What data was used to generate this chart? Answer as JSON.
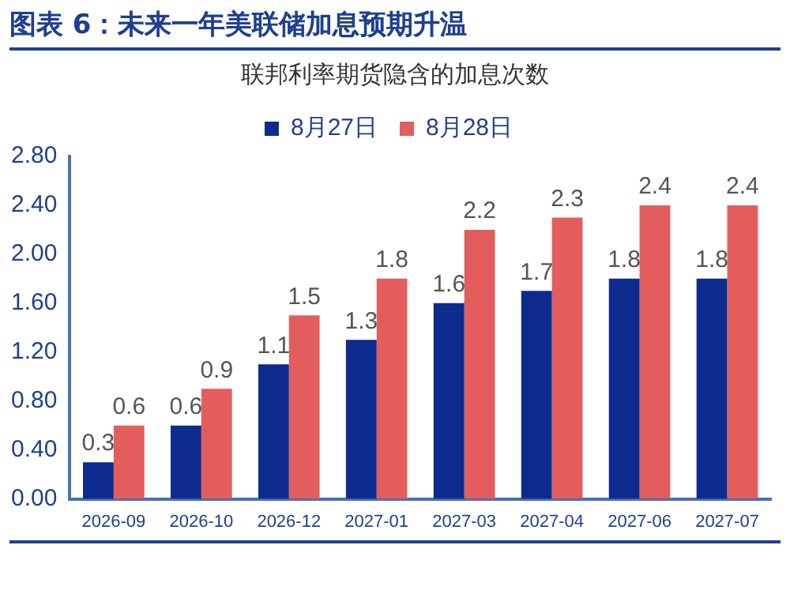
{
  "chart_data": {
    "type": "bar",
    "title": "图表 6：未来一年美联储加息预期升温",
    "subtitle": "联邦利率期货隐含的加息次数",
    "categories": [
      "2026-09",
      "2026-10",
      "2026-12",
      "2027-01",
      "2027-03",
      "2027-04",
      "2027-06",
      "2027-07"
    ],
    "series": [
      {
        "name": "8月27日",
        "color": "#0d2b8e",
        "values": [
          0.3,
          0.6,
          1.1,
          1.3,
          1.6,
          1.7,
          1.8,
          1.8
        ]
      },
      {
        "name": "8月28日",
        "color": "#e35d5d",
        "values": [
          0.6,
          0.9,
          1.5,
          1.8,
          2.2,
          2.3,
          2.4,
          2.4
        ]
      }
    ],
    "ylim": [
      0,
      2.8
    ],
    "yticks": [
      {
        "value": 0,
        "label": "0.00"
      },
      {
        "value": 0.4,
        "label": "0.40"
      },
      {
        "value": 0.8,
        "label": "0.80"
      },
      {
        "value": 1.2,
        "label": "1.20"
      },
      {
        "value": 1.6,
        "label": "1.60"
      },
      {
        "value": 2,
        "label": "2.00"
      },
      {
        "value": 2.4,
        "label": "2.40"
      },
      {
        "value": 2.8,
        "label": "2.80"
      }
    ],
    "grid": false,
    "legend": "top",
    "data_labels": true
  }
}
